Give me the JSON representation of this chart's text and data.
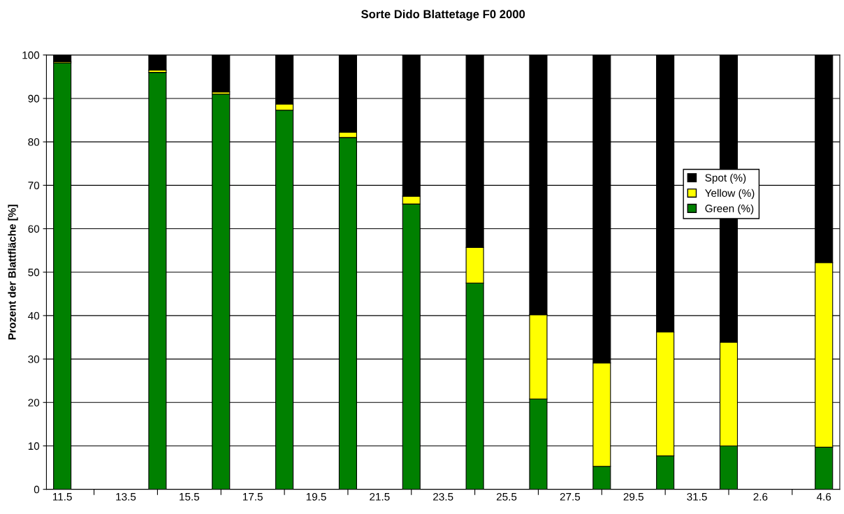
{
  "chart_data": {
    "type": "bar",
    "title": "Sorte Dido Blattetage F0 2000",
    "ylabel": "Prozent der Blattfläche [%]",
    "categories": [
      "11.5",
      null,
      "13.5",
      null,
      "15.5",
      null,
      "17.5",
      null,
      "19.5",
      null,
      "21.5",
      null,
      "23.5",
      null,
      "25.5",
      null,
      "27.5",
      null,
      "29.5",
      null,
      "31.5",
      null,
      "2.6",
      null,
      "4.6"
    ],
    "stacked": true,
    "series": [
      {
        "name": "Green (%)",
        "color": "#008000",
        "values": [
          98.2,
          null,
          null,
          96,
          null,
          91,
          null,
          87.3,
          null,
          81,
          null,
          65.7,
          null,
          47.5,
          null,
          20.8,
          null,
          5.3,
          null,
          7.7,
          null,
          10,
          null,
          null,
          9.7
        ]
      },
      {
        "name": "Yellow (%)",
        "color": "#ffff00",
        "values": [
          0.3,
          null,
          null,
          0.5,
          null,
          0.5,
          null,
          1.4,
          null,
          1.2,
          null,
          1.8,
          null,
          8.2,
          null,
          19.4,
          null,
          23.8,
          null,
          28.5,
          null,
          23.9,
          null,
          null,
          42.5
        ]
      },
      {
        "name": "Spot (%)",
        "color": "#000000",
        "values": [
          1.5,
          null,
          null,
          3.5,
          null,
          8.5,
          null,
          11.3,
          null,
          17.8,
          null,
          32.5,
          null,
          44.3,
          null,
          59.8,
          null,
          70.9,
          null,
          63.8,
          null,
          66.1,
          null,
          null,
          47.8
        ]
      }
    ],
    "ylim": [
      0,
      100
    ],
    "yticks": [
      0,
      10,
      20,
      30,
      40,
      50,
      60,
      70,
      80,
      90,
      100
    ],
    "grid": "y",
    "legend": "right"
  }
}
